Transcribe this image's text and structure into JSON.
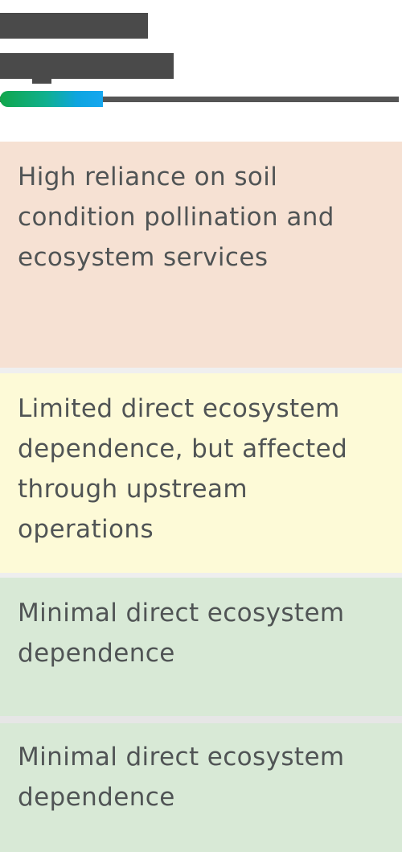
{
  "header": {
    "title_redacted": true,
    "accent_gradient": [
      "#11a64b",
      "#0ea5e0"
    ],
    "track_color": "#555555"
  },
  "rows": [
    {
      "text": "High reliance on soil condition pollination and ecosystem services",
      "background": "#f6e1d3"
    },
    {
      "text": "Limited direct ecosystem dependence, but affected through upstream operations",
      "background": "#fdfad7"
    },
    {
      "text": "Minimal direct ecosystem dependence",
      "background": "#d8e9d6"
    },
    {
      "text": "Minimal direct ecosystem dependence",
      "background": "#d8e9d6"
    }
  ]
}
